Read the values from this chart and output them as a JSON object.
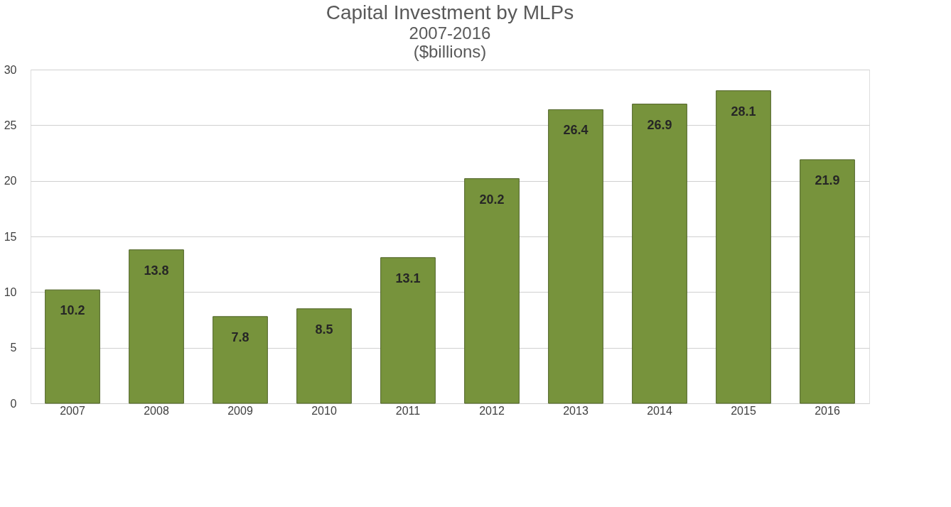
{
  "chart_data": {
    "type": "bar",
    "title": "Capital Investment by MLPs",
    "subtitle": "2007-2016\n($billions)",
    "categories": [
      "2007",
      "2008",
      "2009",
      "2010",
      "2011",
      "2012",
      "2013",
      "2014",
      "2015",
      "2016"
    ],
    "values": [
      10.2,
      13.8,
      7.8,
      8.5,
      13.1,
      20.2,
      26.4,
      26.9,
      28.1,
      21.9
    ],
    "color": "#77933c",
    "ylim": [
      0,
      30
    ],
    "yticks": [
      0,
      5,
      10,
      15,
      20,
      25,
      30
    ],
    "grid": "y",
    "data_labels": true
  }
}
